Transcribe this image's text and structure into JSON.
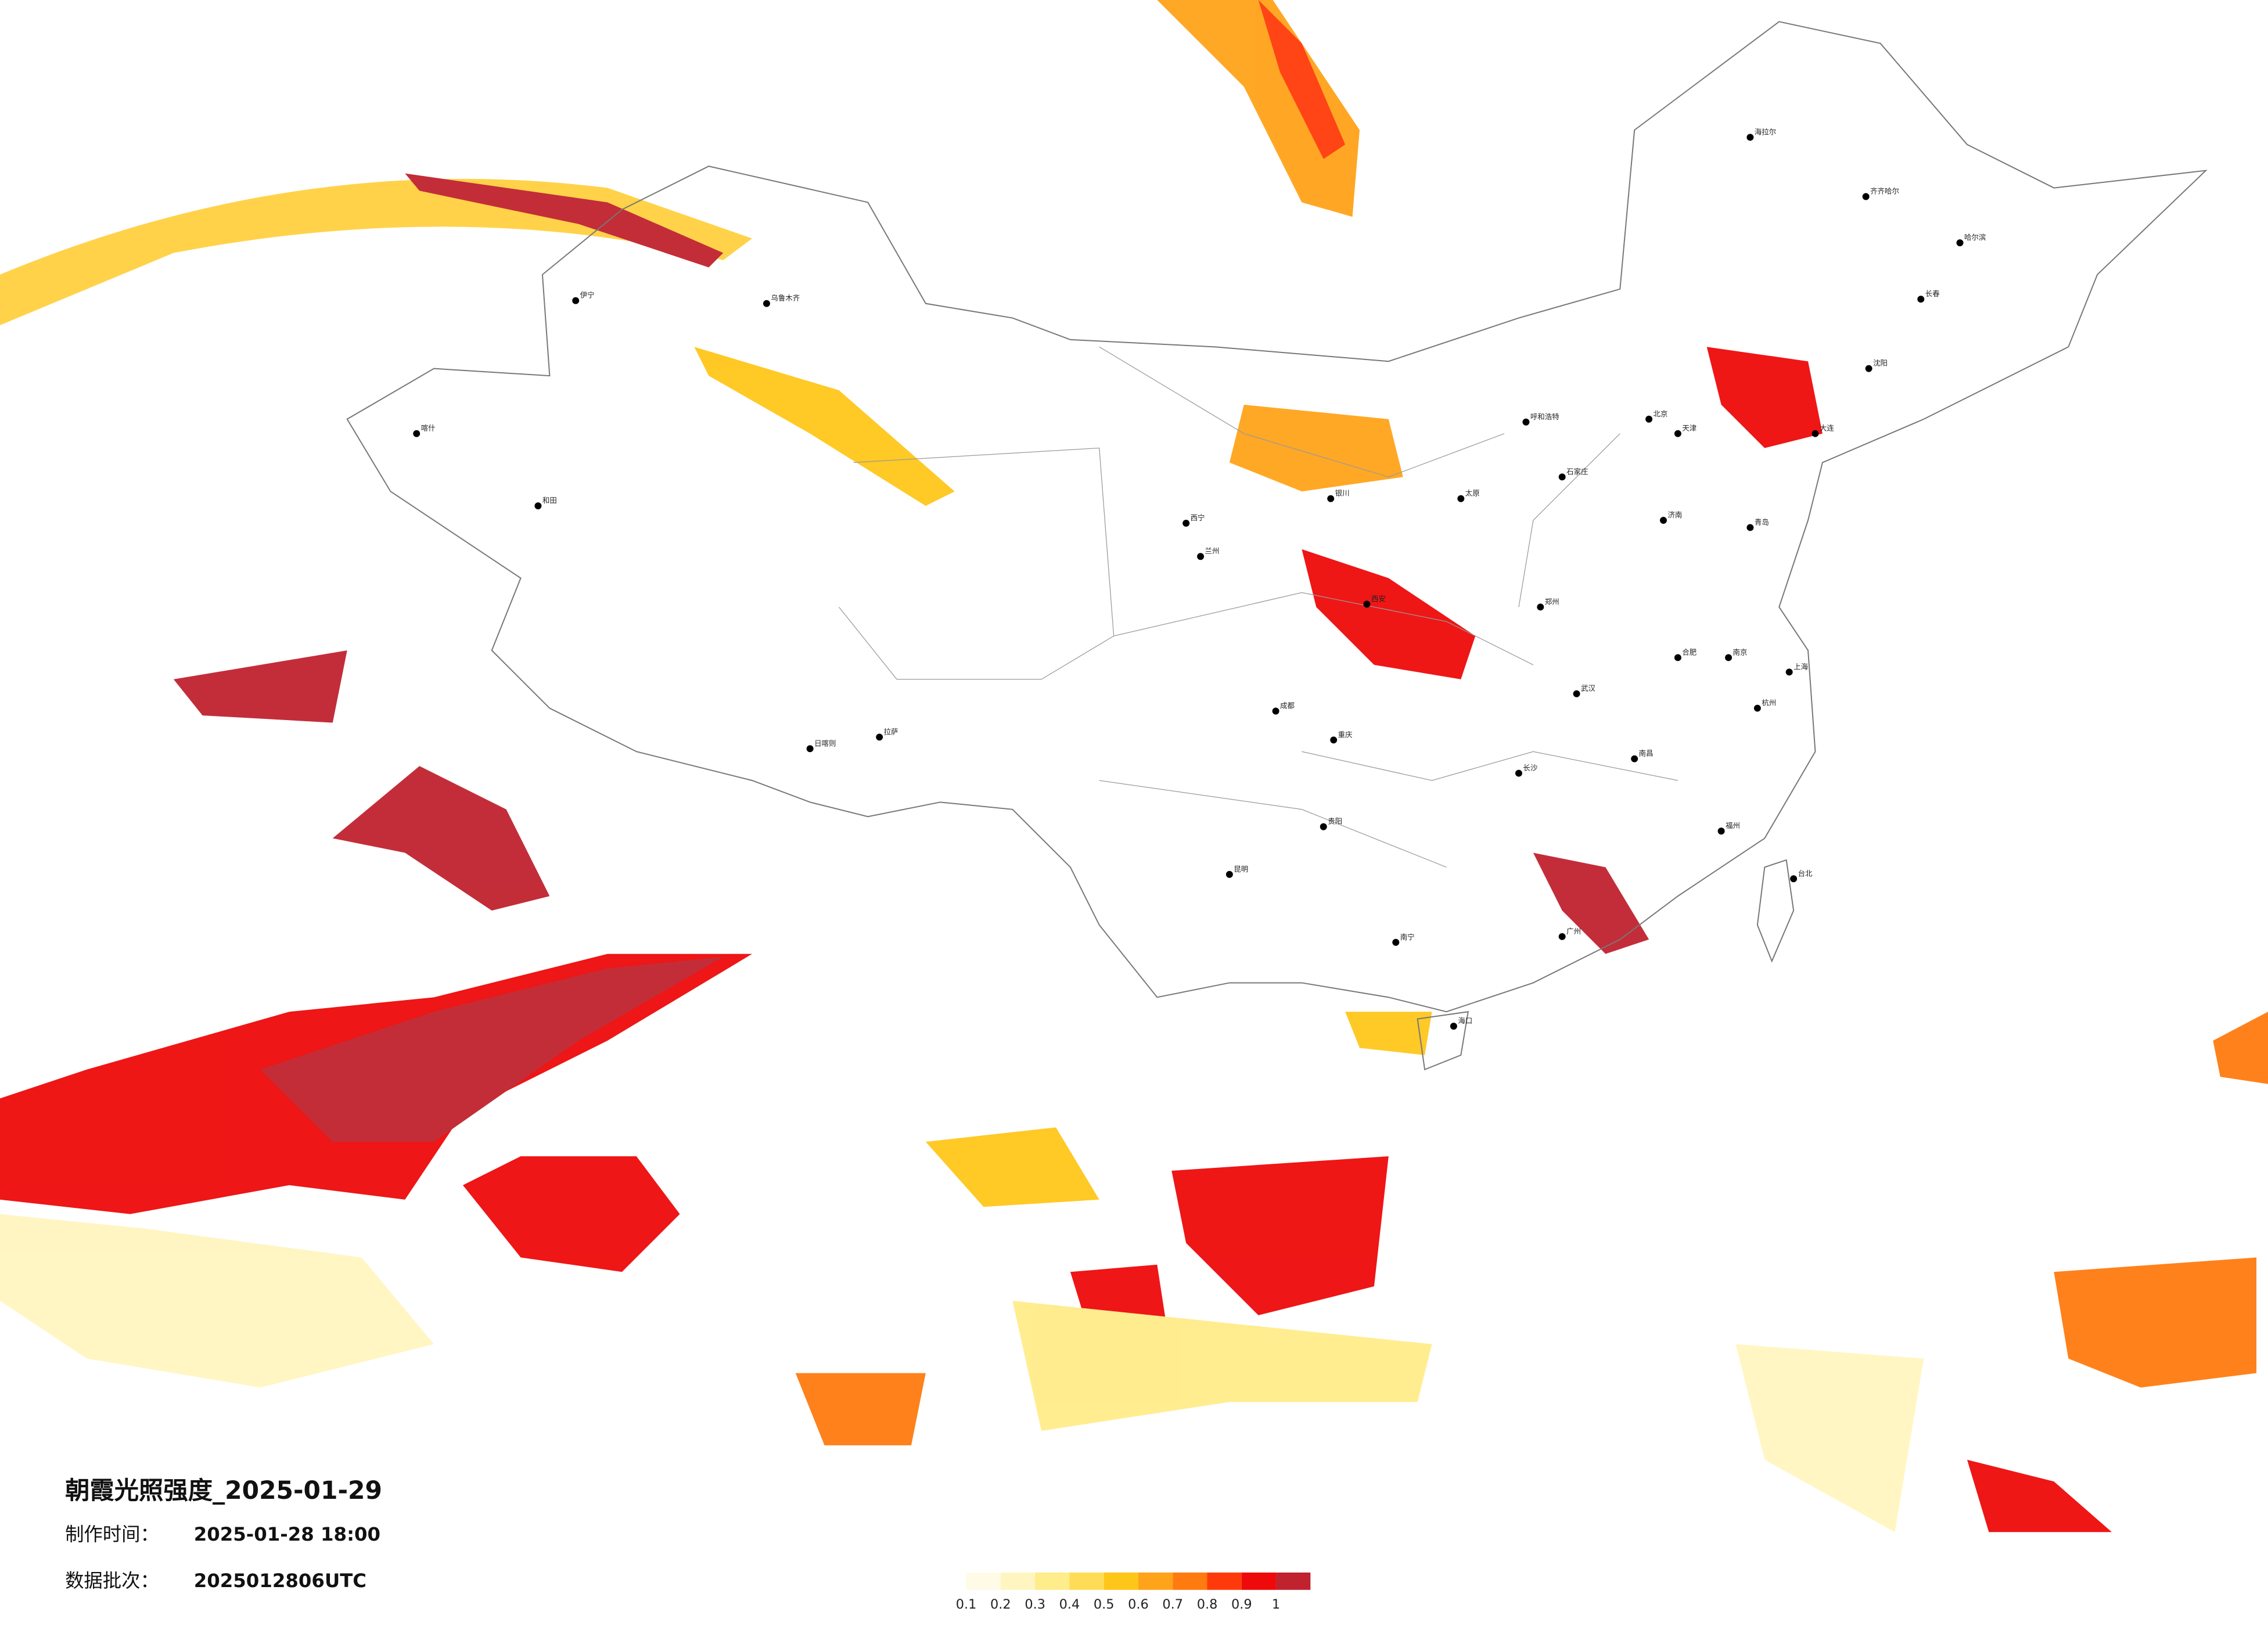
{
  "map": {
    "title": "朝霞光照强度_2025-01-29",
    "made_label": "制作时间：",
    "made_time": "2025-01-28 18:00",
    "batch_label": "数据批次：",
    "batch": "2025012806UTC",
    "colorbar": {
      "colors": [
        "#fffbe6",
        "#fff5c0",
        "#ffec8a",
        "#ffdc55",
        "#ffc61a",
        "#ffa31a",
        "#ff7a0f",
        "#ff3a0a",
        "#ee0a0a",
        "#c0222e"
      ],
      "ticks": [
        0.1,
        0.2,
        0.3,
        0.4,
        0.5,
        0.6,
        0.7,
        0.8,
        0.9,
        1
      ]
    },
    "cities": [
      "北京",
      "上海",
      "广州",
      "哈尔滨",
      "长春",
      "沈阳",
      "乌鲁木齐",
      "拉萨",
      "成都",
      "西安",
      "武汉",
      "重庆",
      "昆明",
      "兰州",
      "呼和浩特",
      "南宁",
      "海口",
      "福州",
      "南京",
      "济南",
      "郑州",
      "长沙",
      "贵阳",
      "西宁",
      "银川",
      "台北",
      "伊宁",
      "喀什",
      "和田",
      "日喀则",
      "海拉尔",
      "齐齐哈尔",
      "大连",
      "青岛",
      "杭州",
      "南昌",
      "合肥",
      "太原",
      "石家庄",
      "天津"
    ]
  }
}
